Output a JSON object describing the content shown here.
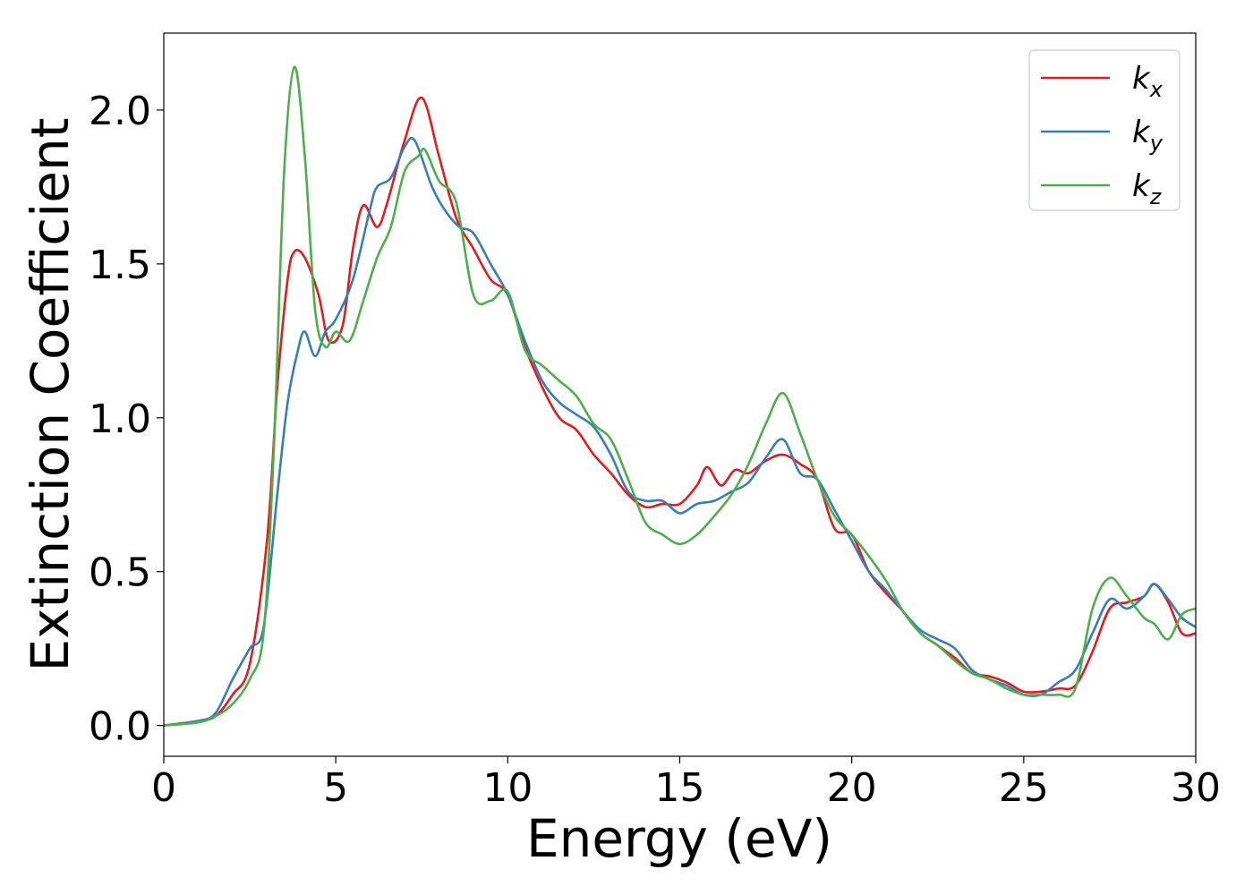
{
  "chart_data": {
    "type": "line",
    "title": "",
    "xlabel": "Energy (eV)",
    "ylabel": "Extinction Coefficient",
    "xlim": [
      0,
      30
    ],
    "ylim": [
      -0.1,
      2.25
    ],
    "xticks": [
      "0",
      "5",
      "10",
      "15",
      "20",
      "25",
      "30"
    ],
    "yticks": [
      "0.0",
      "0.5",
      "1.0",
      "1.5",
      "2.0"
    ],
    "grid": false,
    "legend_position": "top-right",
    "series": [
      {
        "name": "k_x",
        "legend_base": "k",
        "legend_sub": "x",
        "color": "#e41a1c",
        "points": [
          [
            0,
            0
          ],
          [
            1,
            0.015
          ],
          [
            1.5,
            0.03
          ],
          [
            2,
            0.1
          ],
          [
            2.5,
            0.2
          ],
          [
            3,
            0.6
          ],
          [
            3.3,
            1.1
          ],
          [
            3.6,
            1.45
          ],
          [
            3.8,
            1.54
          ],
          [
            4.1,
            1.52
          ],
          [
            4.5,
            1.4
          ],
          [
            4.8,
            1.25
          ],
          [
            5.2,
            1.3
          ],
          [
            5.5,
            1.55
          ],
          [
            5.8,
            1.69
          ],
          [
            6.2,
            1.62
          ],
          [
            6.5,
            1.7
          ],
          [
            7,
            1.9
          ],
          [
            7.5,
            2.04
          ],
          [
            8,
            1.85
          ],
          [
            8.5,
            1.65
          ],
          [
            9,
            1.55
          ],
          [
            9.5,
            1.45
          ],
          [
            10,
            1.4
          ],
          [
            10.5,
            1.23
          ],
          [
            11,
            1.1
          ],
          [
            11.5,
            1.0
          ],
          [
            12,
            0.96
          ],
          [
            12.5,
            0.88
          ],
          [
            13,
            0.82
          ],
          [
            13.5,
            0.75
          ],
          [
            14,
            0.71
          ],
          [
            14.5,
            0.72
          ],
          [
            15,
            0.72
          ],
          [
            15.5,
            0.78
          ],
          [
            15.8,
            0.84
          ],
          [
            16.2,
            0.78
          ],
          [
            16.6,
            0.83
          ],
          [
            17,
            0.82
          ],
          [
            17.5,
            0.86
          ],
          [
            18,
            0.88
          ],
          [
            18.5,
            0.85
          ],
          [
            19,
            0.8
          ],
          [
            19.5,
            0.64
          ],
          [
            20,
            0.62
          ],
          [
            20.5,
            0.5
          ],
          [
            21,
            0.43
          ],
          [
            21.5,
            0.37
          ],
          [
            22,
            0.3
          ],
          [
            22.5,
            0.26
          ],
          [
            23,
            0.22
          ],
          [
            23.5,
            0.17
          ],
          [
            24,
            0.16
          ],
          [
            24.5,
            0.14
          ],
          [
            25,
            0.11
          ],
          [
            25.5,
            0.11
          ],
          [
            26,
            0.12
          ],
          [
            26.5,
            0.13
          ],
          [
            27,
            0.24
          ],
          [
            27.5,
            0.38
          ],
          [
            28,
            0.4
          ],
          [
            28.5,
            0.42
          ],
          [
            28.8,
            0.46
          ],
          [
            29.2,
            0.4
          ],
          [
            29.6,
            0.3
          ],
          [
            30,
            0.3
          ]
        ]
      },
      {
        "name": "k_y",
        "legend_base": "k",
        "legend_sub": "y",
        "color": "#377eb8",
        "points": [
          [
            0,
            0
          ],
          [
            1,
            0.015
          ],
          [
            1.5,
            0.04
          ],
          [
            2,
            0.15
          ],
          [
            2.5,
            0.25
          ],
          [
            2.9,
            0.32
          ],
          [
            3.3,
            0.75
          ],
          [
            3.6,
            1.05
          ],
          [
            3.9,
            1.22
          ],
          [
            4.1,
            1.28
          ],
          [
            4.4,
            1.2
          ],
          [
            4.7,
            1.28
          ],
          [
            5,
            1.32
          ],
          [
            5.5,
            1.45
          ],
          [
            6,
            1.68
          ],
          [
            6.2,
            1.75
          ],
          [
            6.6,
            1.78
          ],
          [
            7,
            1.88
          ],
          [
            7.3,
            1.9
          ],
          [
            7.8,
            1.75
          ],
          [
            8.2,
            1.67
          ],
          [
            8.6,
            1.62
          ],
          [
            9,
            1.6
          ],
          [
            9.5,
            1.5
          ],
          [
            10,
            1.4
          ],
          [
            10.5,
            1.25
          ],
          [
            11,
            1.12
          ],
          [
            11.5,
            1.05
          ],
          [
            12,
            1.01
          ],
          [
            12.5,
            0.97
          ],
          [
            13,
            0.88
          ],
          [
            13.5,
            0.76
          ],
          [
            14,
            0.73
          ],
          [
            14.5,
            0.73
          ],
          [
            15,
            0.69
          ],
          [
            15.5,
            0.72
          ],
          [
            16,
            0.73
          ],
          [
            16.5,
            0.76
          ],
          [
            17,
            0.79
          ],
          [
            17.5,
            0.87
          ],
          [
            18,
            0.93
          ],
          [
            18.5,
            0.82
          ],
          [
            19,
            0.8
          ],
          [
            19.5,
            0.7
          ],
          [
            20,
            0.6
          ],
          [
            20.5,
            0.5
          ],
          [
            21,
            0.44
          ],
          [
            21.5,
            0.37
          ],
          [
            22,
            0.31
          ],
          [
            22.5,
            0.28
          ],
          [
            23,
            0.25
          ],
          [
            23.5,
            0.18
          ],
          [
            24,
            0.15
          ],
          [
            24.5,
            0.13
          ],
          [
            25,
            0.1
          ],
          [
            25.5,
            0.1
          ],
          [
            26,
            0.14
          ],
          [
            26.5,
            0.18
          ],
          [
            27,
            0.3
          ],
          [
            27.5,
            0.41
          ],
          [
            28,
            0.38
          ],
          [
            28.5,
            0.42
          ],
          [
            28.8,
            0.46
          ],
          [
            29.2,
            0.41
          ],
          [
            29.6,
            0.35
          ],
          [
            30,
            0.32
          ]
        ]
      },
      {
        "name": "k_z",
        "legend_base": "k",
        "legend_sub": "z",
        "color": "#4daf4a",
        "points": [
          [
            0,
            0
          ],
          [
            1,
            0.01
          ],
          [
            1.5,
            0.03
          ],
          [
            2,
            0.07
          ],
          [
            2.5,
            0.15
          ],
          [
            2.9,
            0.3
          ],
          [
            3.2,
            0.9
          ],
          [
            3.5,
            1.8
          ],
          [
            3.8,
            2.14
          ],
          [
            4.1,
            1.85
          ],
          [
            4.4,
            1.35
          ],
          [
            4.7,
            1.23
          ],
          [
            5,
            1.28
          ],
          [
            5.4,
            1.25
          ],
          [
            5.8,
            1.38
          ],
          [
            6.2,
            1.52
          ],
          [
            6.6,
            1.62
          ],
          [
            7,
            1.8
          ],
          [
            7.4,
            1.85
          ],
          [
            7.6,
            1.87
          ],
          [
            8,
            1.77
          ],
          [
            8.5,
            1.7
          ],
          [
            9,
            1.4
          ],
          [
            9.5,
            1.38
          ],
          [
            10,
            1.41
          ],
          [
            10.5,
            1.22
          ],
          [
            11,
            1.17
          ],
          [
            11.5,
            1.12
          ],
          [
            12,
            1.07
          ],
          [
            12.5,
            0.98
          ],
          [
            13,
            0.93
          ],
          [
            13.5,
            0.8
          ],
          [
            14,
            0.66
          ],
          [
            14.5,
            0.62
          ],
          [
            15,
            0.59
          ],
          [
            15.5,
            0.62
          ],
          [
            16,
            0.68
          ],
          [
            16.5,
            0.75
          ],
          [
            17,
            0.85
          ],
          [
            17.5,
            0.98
          ],
          [
            18,
            1.08
          ],
          [
            18.5,
            0.95
          ],
          [
            19,
            0.8
          ],
          [
            19.5,
            0.68
          ],
          [
            20,
            0.62
          ],
          [
            20.5,
            0.55
          ],
          [
            21,
            0.47
          ],
          [
            21.5,
            0.37
          ],
          [
            22,
            0.3
          ],
          [
            22.5,
            0.26
          ],
          [
            23,
            0.21
          ],
          [
            23.5,
            0.17
          ],
          [
            24,
            0.15
          ],
          [
            24.5,
            0.12
          ],
          [
            25,
            0.1
          ],
          [
            25.5,
            0.1
          ],
          [
            26,
            0.1
          ],
          [
            26.5,
            0.12
          ],
          [
            27,
            0.38
          ],
          [
            27.5,
            0.48
          ],
          [
            28,
            0.42
          ],
          [
            28.5,
            0.35
          ],
          [
            28.8,
            0.33
          ],
          [
            29.2,
            0.28
          ],
          [
            29.6,
            0.36
          ],
          [
            30,
            0.38
          ]
        ]
      }
    ]
  }
}
